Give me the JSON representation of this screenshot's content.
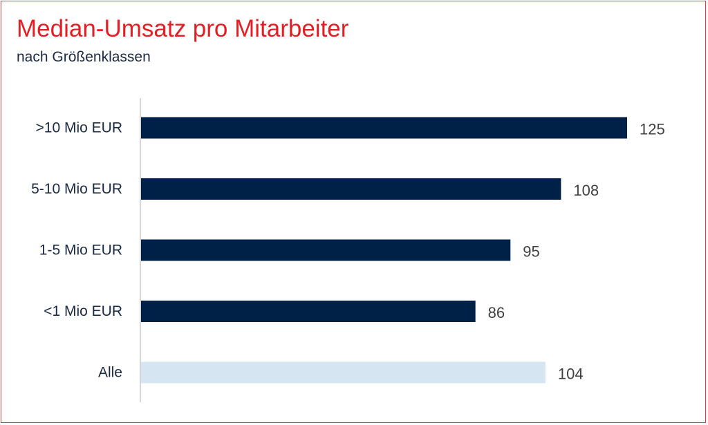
{
  "chart_data": {
    "type": "bar",
    "orientation": "horizontal",
    "title": "Median-Umsatz pro Mitarbeiter",
    "subtitle": "nach Größenklassen",
    "categories": [
      ">10 Mio EUR",
      "5-10 Mio EUR",
      "1-5 Mio EUR",
      "<1 Mio EUR",
      "Alle"
    ],
    "values": [
      125,
      108,
      95,
      86,
      104
    ],
    "value_labels": [
      "125",
      "108",
      "95",
      "86",
      "104"
    ],
    "xlim": [
      0,
      125
    ],
    "grid": false,
    "legend": "none",
    "xlabel": "",
    "ylabel": ""
  },
  "colors": {
    "title": "#e31e24",
    "subtitle": "#1b2a41",
    "bar": "#002147",
    "bar_highlight": "#d5e6f2",
    "category_label": "#1b2a41",
    "value_label": "#404040",
    "axis_line": "#c8c8c8",
    "frame": "#e8383d"
  }
}
